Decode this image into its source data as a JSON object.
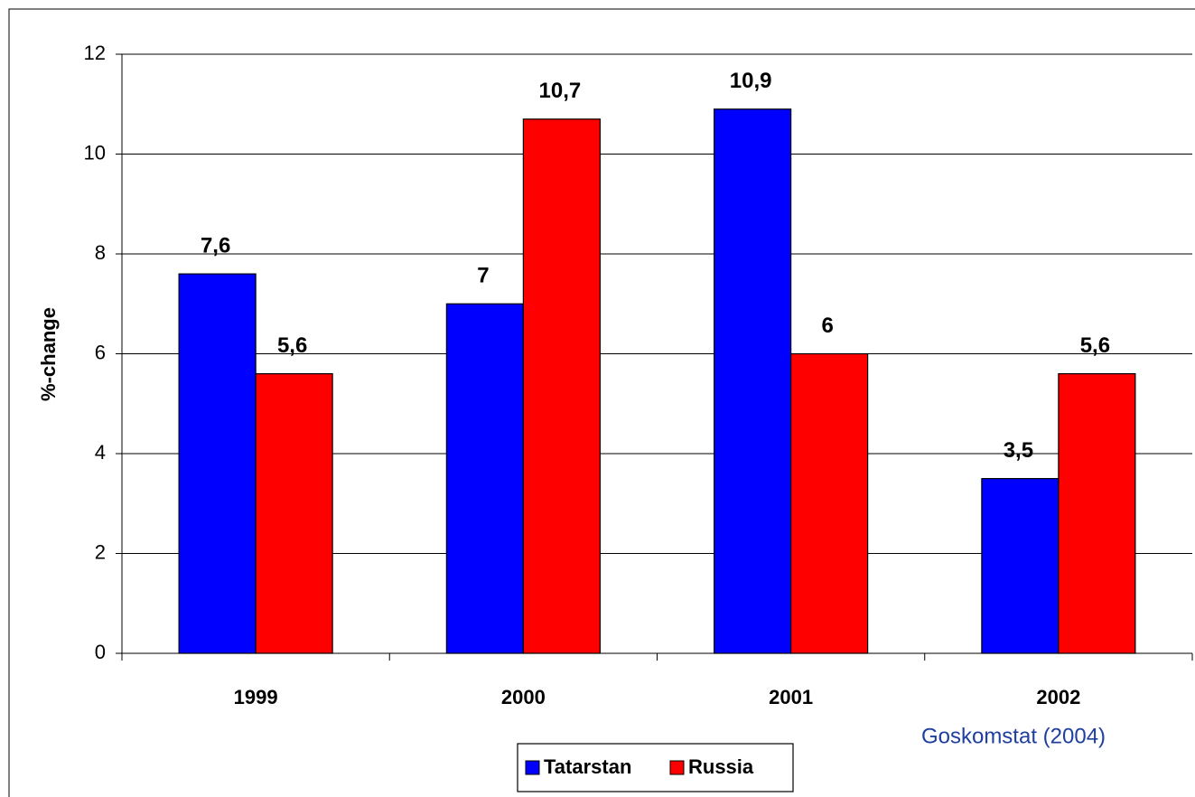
{
  "chart_data": {
    "type": "bar",
    "y_label": "%-change",
    "annotation": "Goskomstat (2004)",
    "categories": [
      "1999",
      "2000",
      "2001",
      "2002"
    ],
    "series": [
      {
        "name": "Tatarstan",
        "color": "#0000ff",
        "values": [
          7.6,
          7,
          10.9,
          3.5
        ],
        "value_labels": [
          "7,6",
          "7",
          "10,9",
          "3,5"
        ]
      },
      {
        "name": "Russia",
        "color": "#ff0000",
        "values": [
          5.6,
          10.7,
          6,
          5.6
        ],
        "value_labels": [
          "5,6",
          "10,7",
          "6",
          "5,6"
        ]
      }
    ],
    "ylim": [
      0,
      12
    ],
    "yticks": [
      0,
      2,
      4,
      6,
      8,
      10,
      12
    ],
    "grid": true,
    "legend": "bottom"
  }
}
